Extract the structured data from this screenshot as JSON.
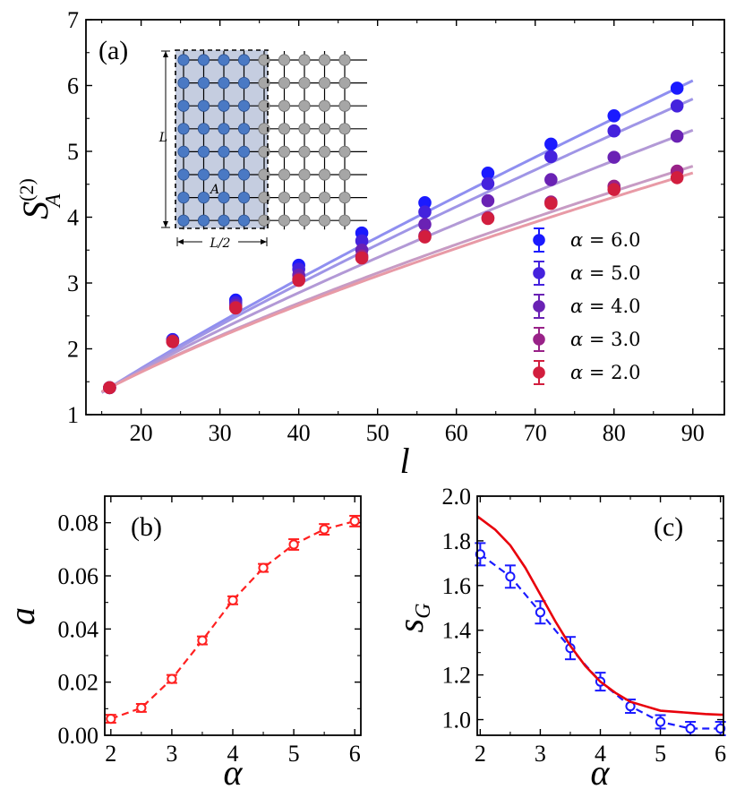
{
  "chart_data": [
    {
      "id": "a",
      "type": "line",
      "panel_label": "(a)",
      "xlabel": "l",
      "ylabel_base": "S",
      "ylabel_sup": "(2)",
      "ylabel_sub": "A",
      "xlim": [
        13,
        94
      ],
      "ylim": [
        1,
        7
      ],
      "xticks": [
        20,
        30,
        40,
        50,
        60,
        70,
        80,
        90
      ],
      "yticks": [
        1,
        2,
        3,
        4,
        5,
        6,
        7
      ],
      "x": [
        16,
        24,
        32,
        40,
        48,
        56,
        64,
        72,
        80,
        88
      ],
      "legend_prefix": "α = ",
      "legend_location": "lower-right",
      "series": [
        {
          "name": "6.0",
          "color": "#1a1aff",
          "fit_color": "#8f8ff0",
          "values": [
            1.41,
            2.14,
            2.74,
            3.27,
            3.76,
            4.22,
            4.67,
            5.11,
            5.54,
            5.96
          ]
        },
        {
          "name": "5.0",
          "color": "#4422dd",
          "fit_color": "#9f95e6",
          "values": [
            1.41,
            2.13,
            2.7,
            3.21,
            3.64,
            4.08,
            4.51,
            4.92,
            5.31,
            5.69
          ]
        },
        {
          "name": "4.0",
          "color": "#6a22b4",
          "fit_color": "#b299d6",
          "values": [
            1.41,
            2.12,
            2.66,
            3.12,
            3.5,
            3.89,
            4.25,
            4.57,
            4.91,
            5.23
          ]
        },
        {
          "name": "3.0",
          "color": "#992288",
          "fit_color": "#c79bc4",
          "values": [
            1.41,
            2.11,
            2.63,
            3.06,
            3.41,
            3.72,
            3.99,
            4.23,
            4.47,
            4.7
          ]
        },
        {
          "name": "2.0",
          "color": "#d21e3e",
          "fit_color": "#e89aa6",
          "values": [
            1.41,
            2.11,
            2.62,
            3.04,
            3.38,
            3.7,
            3.98,
            4.21,
            4.42,
            4.6
          ]
        }
      ],
      "inset": {
        "label_L": "L",
        "label_half": "L/2",
        "label_region": "A",
        "rows": 8,
        "cols": 9,
        "region_cols": 4,
        "region_node_color": "#4a79c4",
        "other_node_color": "#a6a6a6",
        "region_fill": "#c5cde0"
      }
    },
    {
      "id": "b",
      "type": "line",
      "panel_label": "(b)",
      "xlabel": "α",
      "ylabel": "a",
      "xlim": [
        1.9,
        6.1
      ],
      "ylim": [
        0.0,
        0.09
      ],
      "xticks": [
        2,
        3,
        4,
        5,
        6
      ],
      "yticks": [
        "0.00",
        "0.02",
        "0.04",
        "0.06",
        "0.08"
      ],
      "series": [
        {
          "name": "a",
          "color": "#ff2020",
          "style": "dashed-circles",
          "x": [
            2.0,
            2.5,
            3.0,
            3.5,
            4.0,
            4.5,
            5.0,
            5.5,
            6.0
          ],
          "values": [
            0.0062,
            0.0103,
            0.0212,
            0.0357,
            0.0508,
            0.063,
            0.0718,
            0.0775,
            0.0806
          ],
          "errors": [
            0.0015,
            0.0015,
            0.0015,
            0.0015,
            0.0015,
            0.0015,
            0.002,
            0.002,
            0.002
          ]
        }
      ]
    },
    {
      "id": "c",
      "type": "line",
      "panel_label": "(c)",
      "xlabel": "α",
      "ylabel": "s",
      "ylabel_sub": "G",
      "xlim": [
        1.95,
        6.05
      ],
      "ylim": [
        0.93,
        2.0
      ],
      "xticks": [
        2,
        3,
        4,
        5,
        6
      ],
      "yticks": [
        "1.0",
        "1.2",
        "1.4",
        "1.6",
        "1.8",
        "2.0"
      ],
      "series": [
        {
          "name": "data",
          "color": "#1a1aff",
          "style": "dashed-circles",
          "x": [
            2.0,
            2.5,
            3.0,
            3.5,
            4.0,
            4.5,
            5.0,
            5.5,
            6.0
          ],
          "values": [
            1.74,
            1.64,
            1.48,
            1.32,
            1.17,
            1.06,
            0.99,
            0.96,
            0.96
          ],
          "errors": [
            0.05,
            0.05,
            0.05,
            0.05,
            0.04,
            0.03,
            0.03,
            0.03,
            0.03
          ]
        },
        {
          "name": "theory",
          "color": "#e8000b",
          "style": "solid",
          "x": [
            1.95,
            2.0,
            2.25,
            2.5,
            2.75,
            3.0,
            3.25,
            3.5,
            3.75,
            4.0,
            4.25,
            4.5,
            4.75,
            5.0,
            5.25,
            5.5,
            5.75,
            6.0,
            6.05
          ],
          "values": [
            1.91,
            1.9,
            1.85,
            1.78,
            1.68,
            1.56,
            1.44,
            1.33,
            1.24,
            1.17,
            1.12,
            1.08,
            1.06,
            1.04,
            1.035,
            1.03,
            1.025,
            1.022,
            1.022
          ]
        }
      ]
    }
  ]
}
